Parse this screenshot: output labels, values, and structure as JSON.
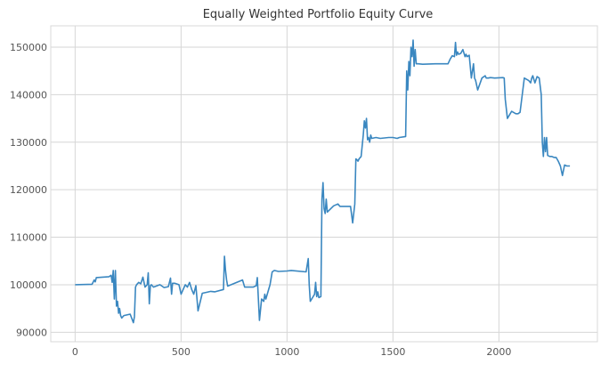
{
  "chart_data": {
    "type": "line",
    "title": "Equally Weighted Portfolio Equity Curve",
    "xlabel": "",
    "ylabel": "",
    "xlim": [
      -115,
      2465
    ],
    "ylim": [
      88000,
      154500
    ],
    "grid": true,
    "x_ticks": [
      0,
      500,
      1000,
      1500,
      2000
    ],
    "x_tick_labels": [
      "0",
      "500",
      "1000",
      "1500",
      "2000"
    ],
    "y_ticks": [
      90000,
      100000,
      110000,
      120000,
      130000,
      140000,
      150000
    ],
    "y_tick_labels": [
      "90000",
      "100000",
      "110000",
      "120000",
      "130000",
      "140000",
      "150000"
    ],
    "color": "#3a87c0",
    "series": [
      {
        "x": [
          0,
          80,
          90,
          95,
          100,
          160,
          170,
          175,
          180,
          185,
          190,
          195,
          200,
          205,
          210,
          215,
          220,
          230,
          260,
          275,
          280,
          285,
          290,
          300,
          310,
          320,
          330,
          340,
          345,
          350,
          355,
          360,
          370,
          400,
          420,
          440,
          450,
          455,
          460,
          470,
          490,
          500,
          510,
          520,
          530,
          540,
          550,
          560,
          570,
          580,
          600,
          620,
          640,
          660,
          700,
          705,
          710,
          715,
          720,
          730,
          790,
          800,
          840,
          855,
          860,
          870,
          880,
          890,
          895,
          900,
          920,
          930,
          940,
          960,
          1000,
          1020,
          1090,
          1100,
          1105,
          1110,
          1130,
          1135,
          1140,
          1145,
          1150,
          1160,
          1165,
          1170,
          1175,
          1180,
          1185,
          1190,
          1220,
          1240,
          1250,
          1300,
          1310,
          1320,
          1325,
          1330,
          1335,
          1340,
          1350,
          1360,
          1365,
          1370,
          1375,
          1380,
          1385,
          1390,
          1395,
          1400,
          1420,
          1440,
          1480,
          1500,
          1520,
          1530,
          1560,
          1565,
          1570,
          1575,
          1580,
          1585,
          1590,
          1595,
          1600,
          1605,
          1610,
          1620,
          1640,
          1700,
          1760,
          1770,
          1780,
          1790,
          1795,
          1800,
          1805,
          1810,
          1820,
          1830,
          1840,
          1845,
          1850,
          1860,
          1870,
          1880,
          1885,
          1890,
          1900,
          1920,
          1935,
          1940,
          1950,
          1960,
          1980,
          2020,
          2025,
          2030,
          2040,
          2060,
          2080,
          2090,
          2100,
          2120,
          2140,
          2150,
          2155,
          2160,
          2170,
          2180,
          2190,
          2200,
          2205,
          2210,
          2215,
          2220,
          2225,
          2230,
          2240,
          2250,
          2260,
          2270,
          2280,
          2290,
          2300,
          2310,
          2320,
          2335
        ],
        "y": [
          100000,
          100100,
          101000,
          100600,
          101500,
          101700,
          102000,
          100500,
          103000,
          97000,
          103000,
          95500,
          96500,
          94000,
          95000,
          93500,
          93000,
          93500,
          93800,
          92000,
          93300,
          99500,
          100000,
          100500,
          100200,
          101600,
          99500,
          100000,
          102500,
          96000,
          99800,
          100000,
          99500,
          100000,
          99400,
          99600,
          101400,
          98000,
          100300,
          100300,
          100000,
          98000,
          99000,
          100000,
          99500,
          100500,
          99000,
          98000,
          99800,
          94500,
          98200,
          98400,
          98600,
          98500,
          99000,
          106000,
          103000,
          101000,
          99700,
          99900,
          101000,
          99500,
          99500,
          99800,
          101500,
          92500,
          97000,
          96500,
          98000,
          97000,
          100000,
          102700,
          103000,
          102800,
          102900,
          103000,
          102700,
          105500,
          100000,
          96500,
          98000,
          100500,
          97500,
          98500,
          97300,
          97500,
          118000,
          121500,
          116000,
          115000,
          118000,
          115300,
          116600,
          117000,
          116500,
          116500,
          113000,
          117000,
          126500,
          126300,
          126000,
          126500,
          127000,
          131500,
          134500,
          133000,
          135000,
          130500,
          131000,
          130000,
          131500,
          130800,
          131000,
          130800,
          131000,
          131000,
          130800,
          131000,
          131200,
          145000,
          141000,
          147000,
          144000,
          150000,
          148000,
          151500,
          146000,
          149500,
          146500,
          146500,
          146400,
          146500,
          146500,
          147500,
          148200,
          148000,
          151000,
          148300,
          149000,
          148500,
          148700,
          149500,
          148000,
          148500,
          148000,
          148300,
          143500,
          146500,
          143500,
          143000,
          141000,
          143500,
          144000,
          143500,
          143500,
          143600,
          143500,
          143600,
          143500,
          139000,
          135000,
          136500,
          136000,
          136000,
          136300,
          143500,
          143000,
          142500,
          143500,
          144000,
          142500,
          143800,
          143500,
          140000,
          130000,
          127000,
          131000,
          128000,
          131000,
          127200,
          127000,
          127000,
          126800,
          126800,
          126000,
          125000,
          123000,
          125200,
          125000,
          125000
        ]
      }
    ]
  }
}
